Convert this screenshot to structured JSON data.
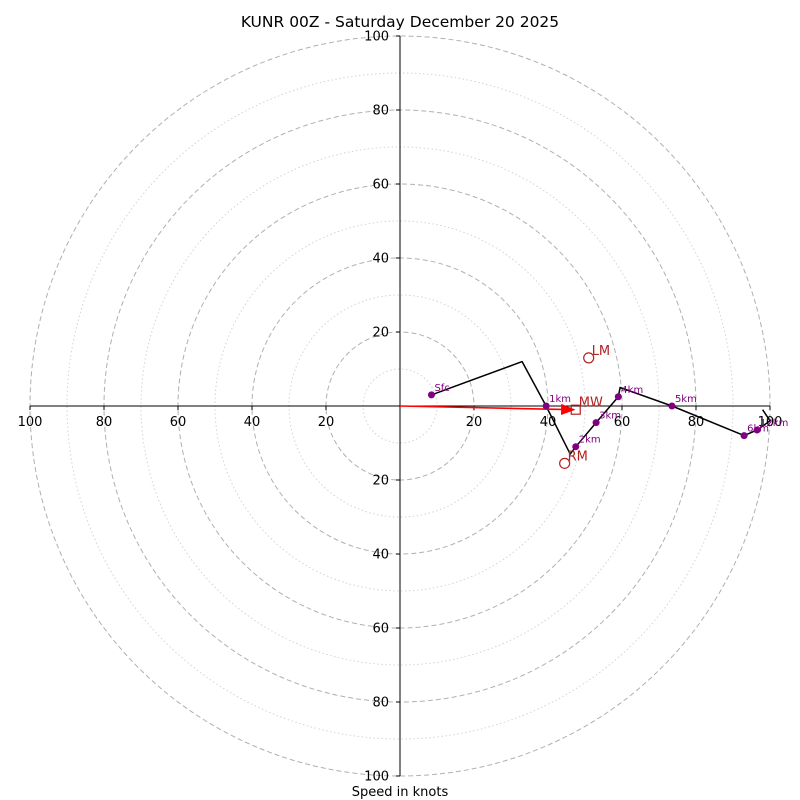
{
  "chart_data": {
    "type": "line",
    "subtype": "hodograph",
    "title": "KUNR 00Z - Saturday December 20 2025",
    "xlabel": "Speed in knots",
    "xlim": [
      -100,
      100
    ],
    "ylim": [
      -100,
      100
    ],
    "major_rings": [
      20,
      40,
      60,
      80,
      100
    ],
    "minor_rings": [
      10,
      30,
      50,
      70,
      90
    ],
    "axis_ticks": [
      {
        "pos": -100,
        "label": "100"
      },
      {
        "pos": -80,
        "label": "80"
      },
      {
        "pos": -60,
        "label": "60"
      },
      {
        "pos": -40,
        "label": "40"
      },
      {
        "pos": -20,
        "label": "20"
      },
      {
        "pos": 20,
        "label": "20"
      },
      {
        "pos": 40,
        "label": "40"
      },
      {
        "pos": 60,
        "label": "60"
      },
      {
        "pos": 80,
        "label": "80"
      },
      {
        "pos": 100,
        "label": "100"
      }
    ],
    "profile": {
      "points": [
        {
          "u": 8.5,
          "v": 3
        },
        {
          "u": 33,
          "v": 12
        },
        {
          "u": 39.5,
          "v": 0
        },
        {
          "u": 46,
          "v": -13
        },
        {
          "u": 47.5,
          "v": -11
        },
        {
          "u": 53,
          "v": -4.5
        },
        {
          "u": 59,
          "v": 2.5
        },
        {
          "u": 59.5,
          "v": 5
        },
        {
          "u": 73.5,
          "v": 0
        },
        {
          "u": 93,
          "v": -8
        },
        {
          "u": 96.5,
          "v": -6.5
        },
        {
          "u": 100,
          "v": -4
        },
        {
          "u": 98,
          "v": -1
        }
      ],
      "levels": [
        {
          "label": "Sfc",
          "u": 8.5,
          "v": 3
        },
        {
          "label": "1km",
          "u": 39.5,
          "v": 0
        },
        {
          "label": "2km",
          "u": 47.5,
          "v": -11
        },
        {
          "label": "3km",
          "u": 53,
          "v": -4.5
        },
        {
          "label": "4km",
          "u": 59,
          "v": 2.5
        },
        {
          "label": "5km",
          "u": 73.5,
          "v": 0
        },
        {
          "label": "6km",
          "u": 93,
          "v": -8
        },
        {
          "label": "12km",
          "u": 96.5,
          "v": -6.5
        }
      ]
    },
    "storm_motions": [
      {
        "label": "LM",
        "marker": "circle",
        "u": 51,
        "v": 13
      },
      {
        "label": "RM",
        "marker": "circle",
        "u": 44.5,
        "v": -15.5
      },
      {
        "label": "MW",
        "marker": "square",
        "u": 47.5,
        "v": -1
      }
    ],
    "shear_vector": {
      "from": [
        0,
        0
      ],
      "to": [
        47,
        -1
      ],
      "color": "#ff0000"
    },
    "colors": {
      "profile": "#000000",
      "levels": "#800080",
      "motion": "#b22222",
      "grid": "#b0b0b0",
      "minor_grid": "#d3d3d3"
    }
  }
}
